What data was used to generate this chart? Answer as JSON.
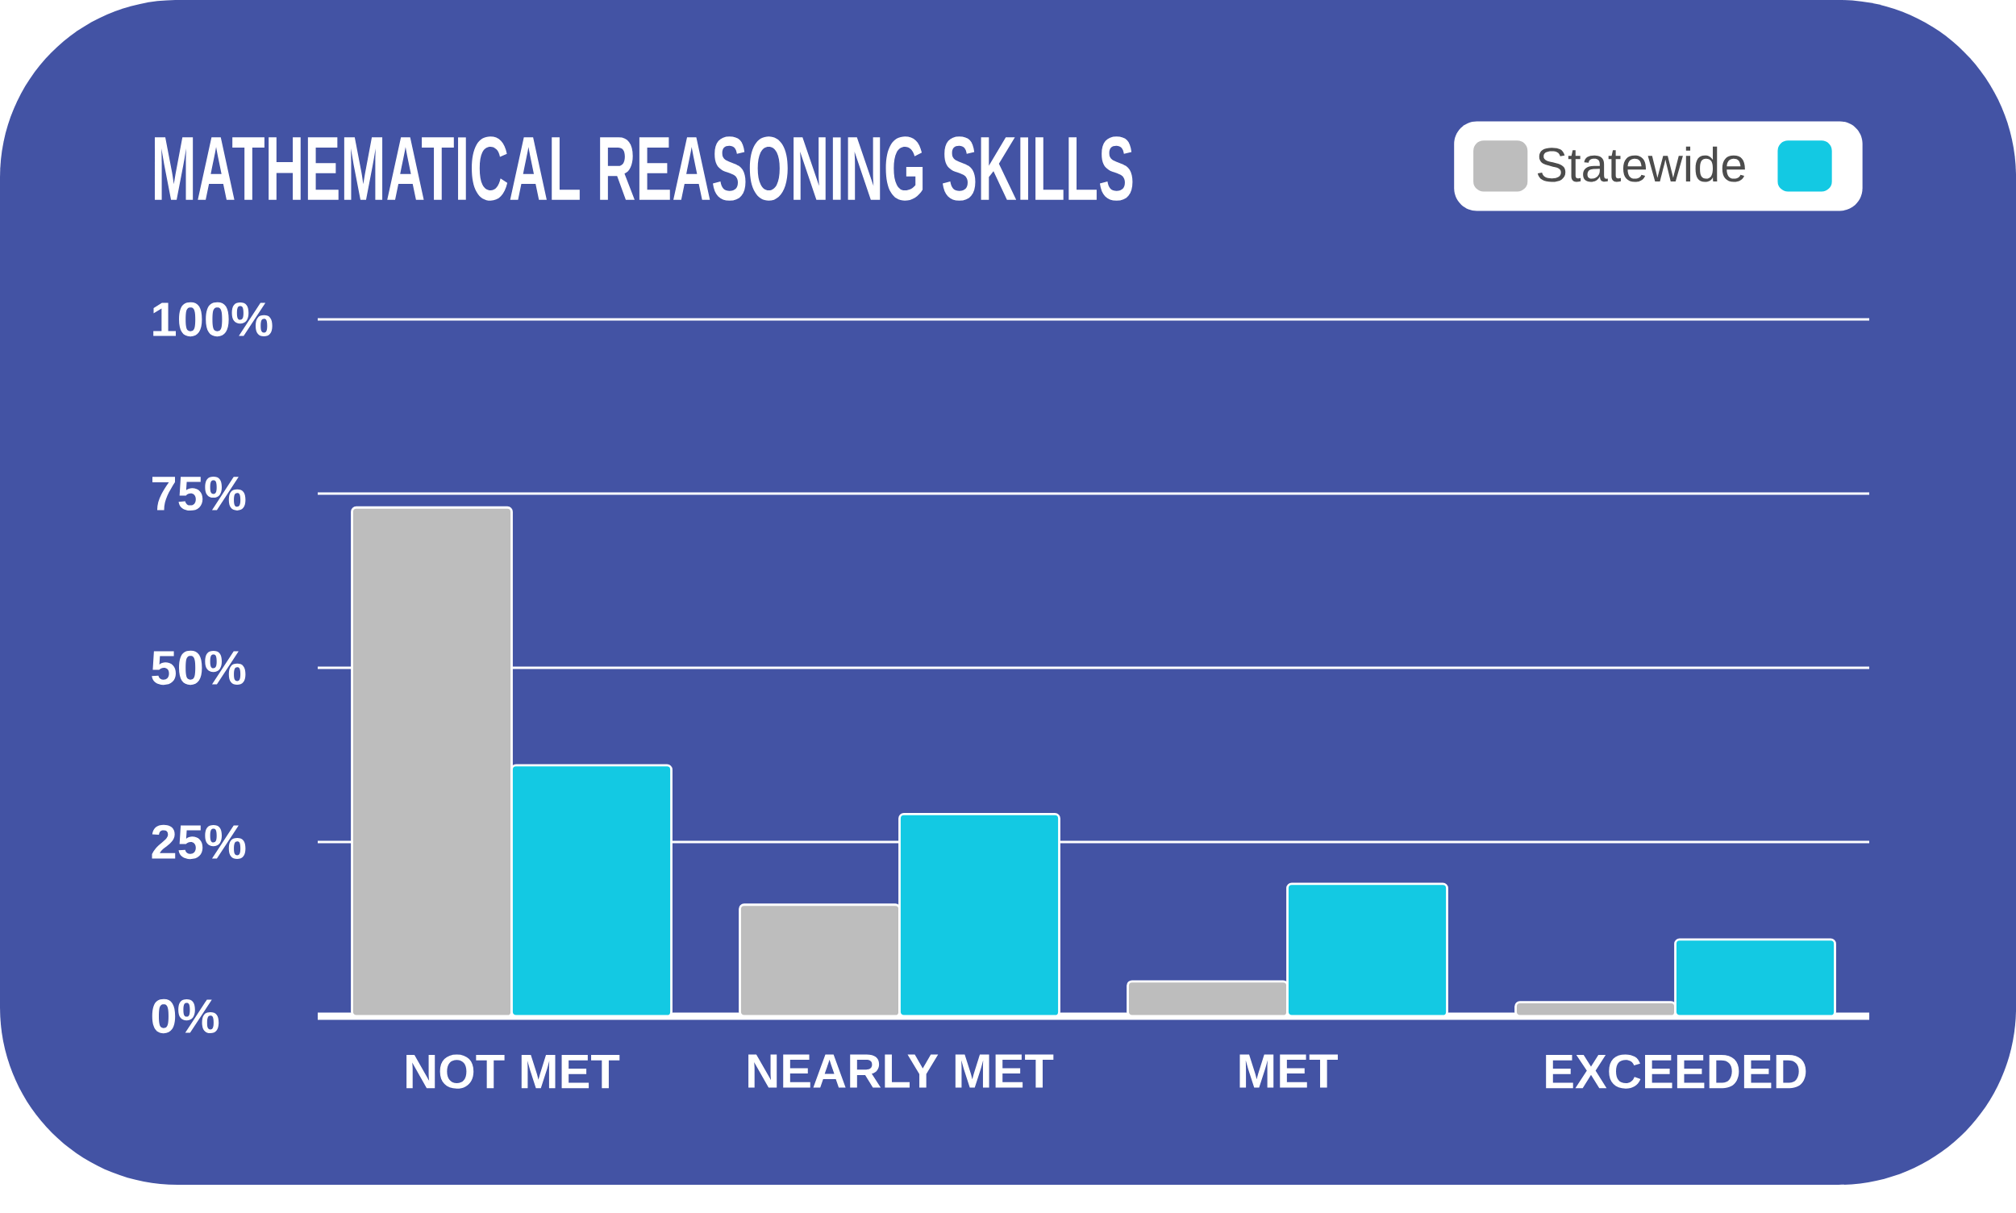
{
  "chart_data": {
    "type": "bar",
    "title": "MATHEMATICAL REASONING SKILLS",
    "categories": [
      "NOT MET",
      "NEARLY MET",
      "MET",
      "EXCEEDED"
    ],
    "series": [
      {
        "name": "Statewide",
        "color": "#bdbdbd",
        "values": [
          73,
          16,
          5,
          2
        ]
      },
      {
        "color": "#13c9e3",
        "values": [
          36,
          29,
          19,
          11
        ]
      }
    ],
    "ylim": [
      0,
      100
    ],
    "yticks": [
      {
        "value": 0,
        "label": "0%"
      },
      {
        "value": 25,
        "label": "25%"
      },
      {
        "value": 50,
        "label": "50%"
      },
      {
        "value": 75,
        "label": "75%"
      },
      {
        "value": 100,
        "label": "100%"
      }
    ],
    "grid": "y",
    "legend": "top right"
  }
}
